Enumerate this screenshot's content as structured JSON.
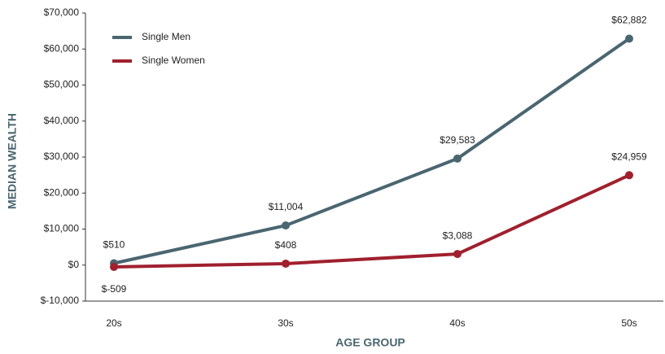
{
  "chart_data": {
    "type": "line",
    "categories": [
      "20s",
      "30s",
      "40s",
      "50s"
    ],
    "series": [
      {
        "name": "Single Men",
        "color": "#4a6670",
        "values": [
          510,
          11004,
          29583,
          62882
        ],
        "value_labels": [
          "$510",
          "$11,004",
          "$29,583",
          "$62,882"
        ]
      },
      {
        "name": "Single Women",
        "color": "#a0202e",
        "values": [
          -509,
          408,
          3088,
          24959
        ],
        "value_labels": [
          "$-509",
          "$408",
          "$3,088",
          "$24,959"
        ]
      }
    ],
    "ylim": [
      -10000,
      70000
    ],
    "yticks": [
      {
        "value": -10000,
        "label": "$-10,000"
      },
      {
        "value": 0,
        "label": "$0"
      },
      {
        "value": 10000,
        "label": "$10,000"
      },
      {
        "value": 20000,
        "label": "$20,000"
      },
      {
        "value": 30000,
        "label": "$30,000"
      },
      {
        "value": 40000,
        "label": "$40,000"
      },
      {
        "value": 50000,
        "label": "$50,000"
      },
      {
        "value": 60000,
        "label": "$60,000"
      },
      {
        "value": 70000,
        "label": "$70,000"
      }
    ],
    "ylabel": "MEDIAN WEALTH",
    "xlabel": "AGE GROUP",
    "legend": "top-left"
  }
}
